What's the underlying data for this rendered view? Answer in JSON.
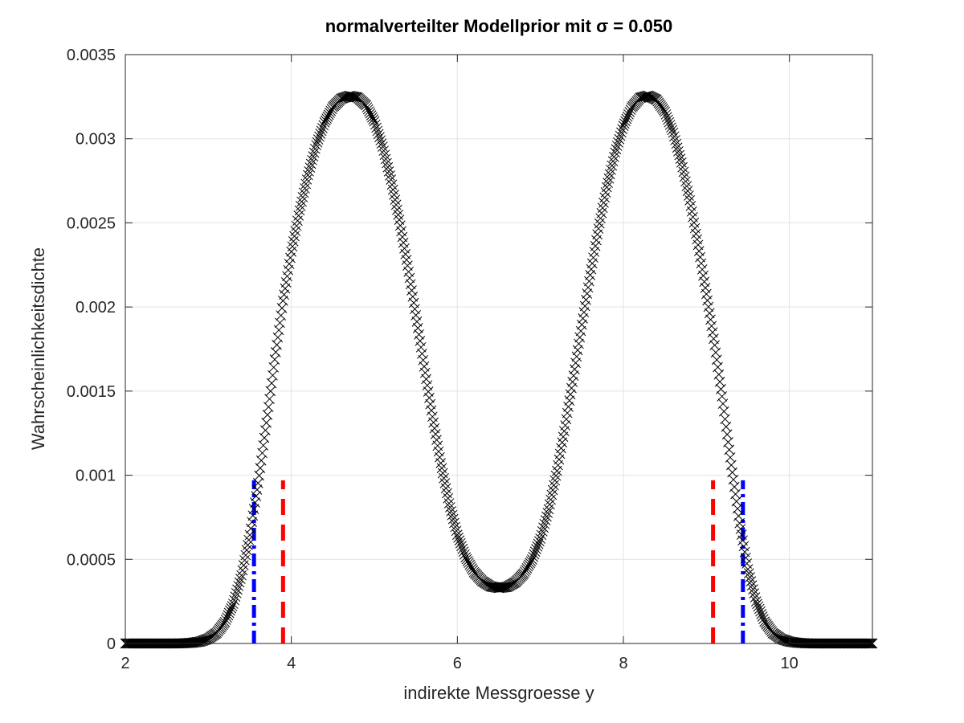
{
  "chart_data": {
    "type": "line",
    "title": "normalverteilter Modellprior mit σ = 0.050",
    "xlabel": "indirekte Messgroesse y",
    "ylabel": "Wahrscheinlichkeitsdichte",
    "xlim": [
      2,
      11
    ],
    "ylim": [
      0,
      0.0035
    ],
    "xticks": [
      2,
      4,
      6,
      8,
      10
    ],
    "xtick_labels": [
      "2",
      "4",
      "6",
      "8",
      "10"
    ],
    "yticks": [
      0,
      0.0005,
      0.001,
      0.0015,
      0.002,
      0.0025,
      0.003,
      0.0035
    ],
    "ytick_labels": [
      "0",
      "0.0005",
      "0.001",
      "0.0015",
      "0.002",
      "0.0025",
      "0.003",
      "0.0035"
    ],
    "grid": true,
    "box": true,
    "series": [
      {
        "marker": "x",
        "color": "#000000",
        "x": [
          2.0,
          2.1,
          2.2,
          2.3,
          2.4,
          2.5,
          2.6,
          2.7,
          2.8,
          2.9,
          3.0,
          3.1,
          3.2,
          3.3,
          3.4,
          3.5,
          3.6,
          3.7,
          3.8,
          3.9,
          4.0,
          4.1,
          4.2,
          4.3,
          4.4,
          4.5,
          4.6,
          4.7,
          4.8,
          4.9,
          5.0,
          5.1,
          5.2,
          5.3,
          5.4,
          5.5,
          5.6,
          5.7,
          5.8,
          5.9,
          6.0,
          6.1,
          6.2,
          6.3,
          6.4,
          6.5,
          6.6,
          6.7,
          6.8,
          6.9,
          7.0,
          7.1,
          7.2,
          7.3,
          7.4,
          7.5,
          7.6,
          7.7,
          7.8,
          7.9,
          8.0,
          8.1,
          8.2,
          8.3,
          8.4,
          8.5,
          8.6,
          8.7,
          8.8,
          8.9,
          9.0,
          9.1,
          9.2,
          9.3,
          9.4,
          9.5,
          9.6,
          9.7,
          9.8,
          9.9,
          10.0,
          10.1,
          10.2,
          10.3,
          10.4,
          10.5,
          10.6,
          10.7,
          10.8,
          10.9,
          11.0
        ],
        "y": [
          0.0,
          0.0,
          0.0,
          0.0,
          0.0,
          0.0,
          0.0,
          1e-06,
          4e-06,
          1.1e-05,
          2.8e-05,
          6.3e-05,
          0.000127,
          0.000236,
          0.000405,
          0.000645,
          0.000953,
          0.001312,
          0.001688,
          0.002037,
          0.002329,
          0.002574,
          0.002784,
          0.002962,
          0.003097,
          0.003188,
          0.003238,
          0.003255,
          0.003245,
          0.003199,
          0.003103,
          0.002953,
          0.002757,
          0.002518,
          0.002246,
          0.001951,
          0.001646,
          0.001348,
          0.001072,
          0.000833,
          0.000646,
          0.000512,
          0.000424,
          0.00037,
          0.000339,
          0.00033,
          0.000336,
          0.000364,
          0.000416,
          0.000499,
          0.000623,
          0.000798,
          0.001026,
          0.001296,
          0.001592,
          0.001895,
          0.00219,
          0.002466,
          0.002712,
          0.002918,
          0.003077,
          0.003186,
          0.003243,
          0.003256,
          0.003232,
          0.00316,
          0.003036,
          0.002859,
          0.002634,
          0.002369,
          0.002077,
          0.001773,
          0.001425,
          0.00106,
          0.000715,
          0.000441,
          0.00025,
          0.00013,
          6.2e-05,
          2.7e-05,
          1.1e-05,
          4e-06,
          1e-06,
          0.0,
          0.0,
          0.0,
          0.0,
          0.0,
          0.0,
          0.0,
          0.0
        ]
      }
    ],
    "vertical_lines": [
      {
        "x": 3.9,
        "y_top": 0.00097,
        "color": "#ff0000",
        "style": "dashed"
      },
      {
        "x": 9.08,
        "y_top": 0.00097,
        "color": "#ff0000",
        "style": "dashed"
      },
      {
        "x": 3.55,
        "y_top": 0.00097,
        "color": "#0000ff",
        "style": "dash-dot"
      },
      {
        "x": 9.44,
        "y_top": 0.00097,
        "color": "#0000ff",
        "style": "dash-dot"
      }
    ]
  }
}
